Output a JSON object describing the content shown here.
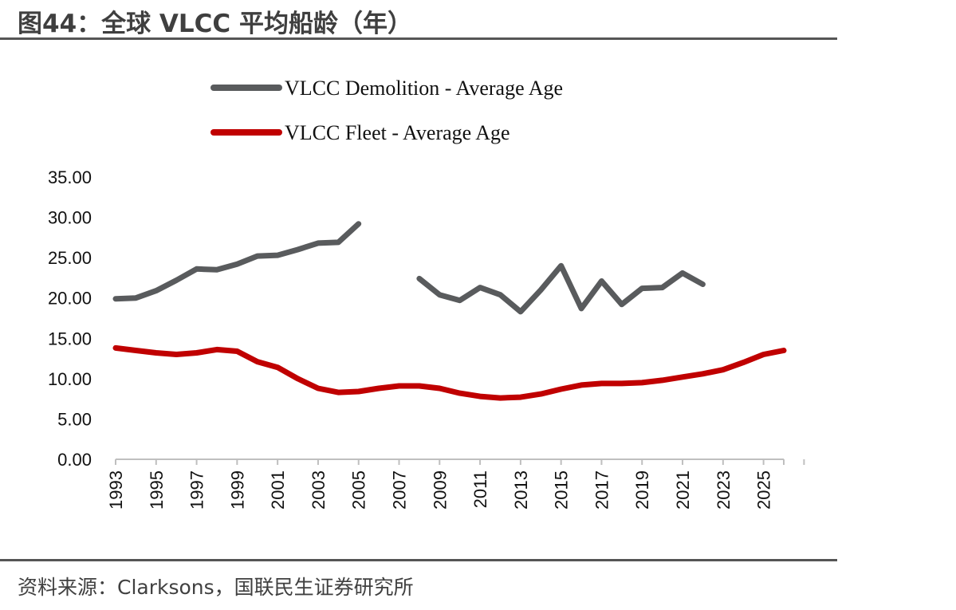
{
  "title": "图44：全球 VLCC 平均船龄（年）",
  "source": "资料来源：Clarksons，国联民生证券研究所",
  "colors": {
    "demolition": "#595b5d",
    "fleet": "#c00000",
    "axis": "#bfbfbf"
  },
  "chart_data": {
    "type": "line",
    "ylim": [
      0,
      35
    ],
    "yticks": [
      "0.00",
      "5.00",
      "10.00",
      "15.00",
      "20.00",
      "25.00",
      "30.00",
      "35.00"
    ],
    "xlim": [
      1993,
      2026
    ],
    "xticks": [
      "1993",
      "1995",
      "1997",
      "1999",
      "2001",
      "2003",
      "2005",
      "2007",
      "2009",
      "2011",
      "2013",
      "2015",
      "2017",
      "2019",
      "2021",
      "2023",
      "2025"
    ],
    "legend_position": "top",
    "grid": false,
    "series": [
      {
        "name": "VLCC Demolition - Average Age",
        "color_key": "demolition",
        "points": [
          [
            1993,
            19.9
          ],
          [
            1994,
            20.0
          ],
          [
            1995,
            20.9
          ],
          [
            1996,
            22.2
          ],
          [
            1997,
            23.6
          ],
          [
            1998,
            23.5
          ],
          [
            1999,
            24.2
          ],
          [
            2000,
            25.2
          ],
          [
            2001,
            25.3
          ],
          [
            2002,
            26.0
          ],
          [
            2003,
            26.8
          ],
          [
            2004,
            26.9
          ],
          [
            2005,
            29.2
          ],
          [
            2006,
            null
          ],
          [
            2007,
            null
          ],
          [
            2008,
            22.4
          ],
          [
            2009,
            20.4
          ],
          [
            2010,
            19.7
          ],
          [
            2011,
            21.3
          ],
          [
            2012,
            20.4
          ],
          [
            2013,
            18.3
          ],
          [
            2014,
            21.0
          ],
          [
            2015,
            24.0
          ],
          [
            2016,
            18.7
          ],
          [
            2017,
            22.1
          ],
          [
            2018,
            19.2
          ],
          [
            2019,
            21.2
          ],
          [
            2020,
            21.3
          ],
          [
            2021,
            23.1
          ],
          [
            2022,
            21.7
          ]
        ]
      },
      {
        "name": "VLCC Fleet - Average Age",
        "color_key": "fleet",
        "points": [
          [
            1993,
            13.8
          ],
          [
            1994,
            13.5
          ],
          [
            1995,
            13.2
          ],
          [
            1996,
            13.0
          ],
          [
            1997,
            13.2
          ],
          [
            1998,
            13.6
          ],
          [
            1999,
            13.4
          ],
          [
            2000,
            12.1
          ],
          [
            2001,
            11.4
          ],
          [
            2002,
            10.0
          ],
          [
            2003,
            8.8
          ],
          [
            2004,
            8.3
          ],
          [
            2005,
            8.4
          ],
          [
            2006,
            8.8
          ],
          [
            2007,
            9.1
          ],
          [
            2008,
            9.1
          ],
          [
            2009,
            8.8
          ],
          [
            2010,
            8.2
          ],
          [
            2011,
            7.8
          ],
          [
            2012,
            7.6
          ],
          [
            2013,
            7.7
          ],
          [
            2014,
            8.1
          ],
          [
            2015,
            8.7
          ],
          [
            2016,
            9.2
          ],
          [
            2017,
            9.4
          ],
          [
            2018,
            9.4
          ],
          [
            2019,
            9.5
          ],
          [
            2020,
            9.8
          ],
          [
            2021,
            10.2
          ],
          [
            2022,
            10.6
          ],
          [
            2023,
            11.1
          ],
          [
            2024,
            12.0
          ],
          [
            2025,
            13.0
          ],
          [
            2026,
            13.5
          ]
        ]
      }
    ]
  }
}
